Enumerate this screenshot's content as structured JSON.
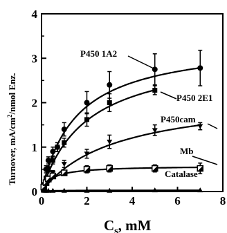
{
  "chart_data": {
    "type": "scatter",
    "xlabel_main": "C",
    "xlabel_sub": "s",
    "xlabel_rest": ", mM",
    "ylabel_main": "Turnover,  mA/cm",
    "ylabel_sup": "2",
    "ylabel_rest": "/nmol Enz.",
    "xlim": [
      0,
      8
    ],
    "ylim": [
      0,
      4
    ],
    "xticks": [
      "0",
      "2",
      "4",
      "6",
      "8"
    ],
    "yticks": [
      "0",
      "1",
      "2",
      "3",
      "4"
    ],
    "grid": false,
    "series": [
      {
        "name": "P450 1A2",
        "marker": "circle-filled",
        "x": [
          0.1,
          0.2,
          0.3,
          0.5,
          0.7,
          1.0,
          2.0,
          3.0,
          5.0,
          7.0
        ],
        "y": [
          0.15,
          0.5,
          0.7,
          0.9,
          1.0,
          1.4,
          2.0,
          2.4,
          2.75,
          2.78
        ],
        "err": [
          0.05,
          0.08,
          0.08,
          0.1,
          0.1,
          0.15,
          0.25,
          0.3,
          0.35,
          0.4
        ],
        "fit": {
          "vmax": 3.4,
          "km": 1.55
        }
      },
      {
        "name": "P450 2E1",
        "marker": "square-filled",
        "x": [
          0.1,
          0.2,
          0.3,
          0.5,
          0.7,
          1.0,
          2.0,
          3.0,
          5.0
        ],
        "y": [
          0.1,
          0.3,
          0.5,
          0.7,
          1.0,
          1.1,
          1.62,
          2.0,
          2.28
        ],
        "err": [
          0.05,
          0.05,
          0.06,
          0.08,
          0.1,
          0.1,
          0.15,
          0.2,
          0.1
        ],
        "fit": {
          "vmax": 3.2,
          "km": 2.0
        }
      },
      {
        "name": "P450cam",
        "marker": "triangle-down-filled",
        "x": [
          0.1,
          0.2,
          0.3,
          0.5,
          1.0,
          2.0,
          3.0,
          5.0,
          7.0
        ],
        "y": [
          0.1,
          0.2,
          0.3,
          0.42,
          0.62,
          0.85,
          1.12,
          1.38,
          1.47
        ],
        "err": [
          0.05,
          0.05,
          0.05,
          0.05,
          0.08,
          0.1,
          0.15,
          0.12,
          0.08
        ],
        "fit": {
          "vmax": 2.2,
          "km": 3.3
        }
      },
      {
        "name": "Mb",
        "marker": "square-half",
        "x": [
          0.1,
          0.2,
          0.3,
          0.5,
          1.0,
          2.0,
          3.0,
          5.0,
          7.0
        ],
        "y": [
          0.1,
          0.2,
          0.28,
          0.35,
          0.42,
          0.5,
          0.52,
          0.52,
          0.52
        ],
        "err": [
          0.03,
          0.03,
          0.04,
          0.05,
          0.05,
          0.08,
          0.08,
          0.08,
          0.12
        ],
        "fit": {
          "vmax": 0.58,
          "km": 0.45
        }
      },
      {
        "name": "Catalase",
        "marker": "triangle-up-filled",
        "x": [
          0.1,
          0.2,
          0.3,
          0.5,
          1.0,
          2.0,
          3.0,
          5.0,
          7.0
        ],
        "y": [
          0.02,
          0.02,
          0.02,
          0.02,
          0.02,
          0.02,
          0.02,
          0.03,
          0.03
        ],
        "err": [
          0,
          0,
          0,
          0,
          0,
          0,
          0,
          0,
          0
        ],
        "fit": {
          "vmax": 0.03,
          "km": 0.5
        }
      }
    ],
    "labels": [
      "P450 1A2",
      "P450 2E1",
      "P450cam",
      "Mb",
      "Catalase"
    ]
  }
}
